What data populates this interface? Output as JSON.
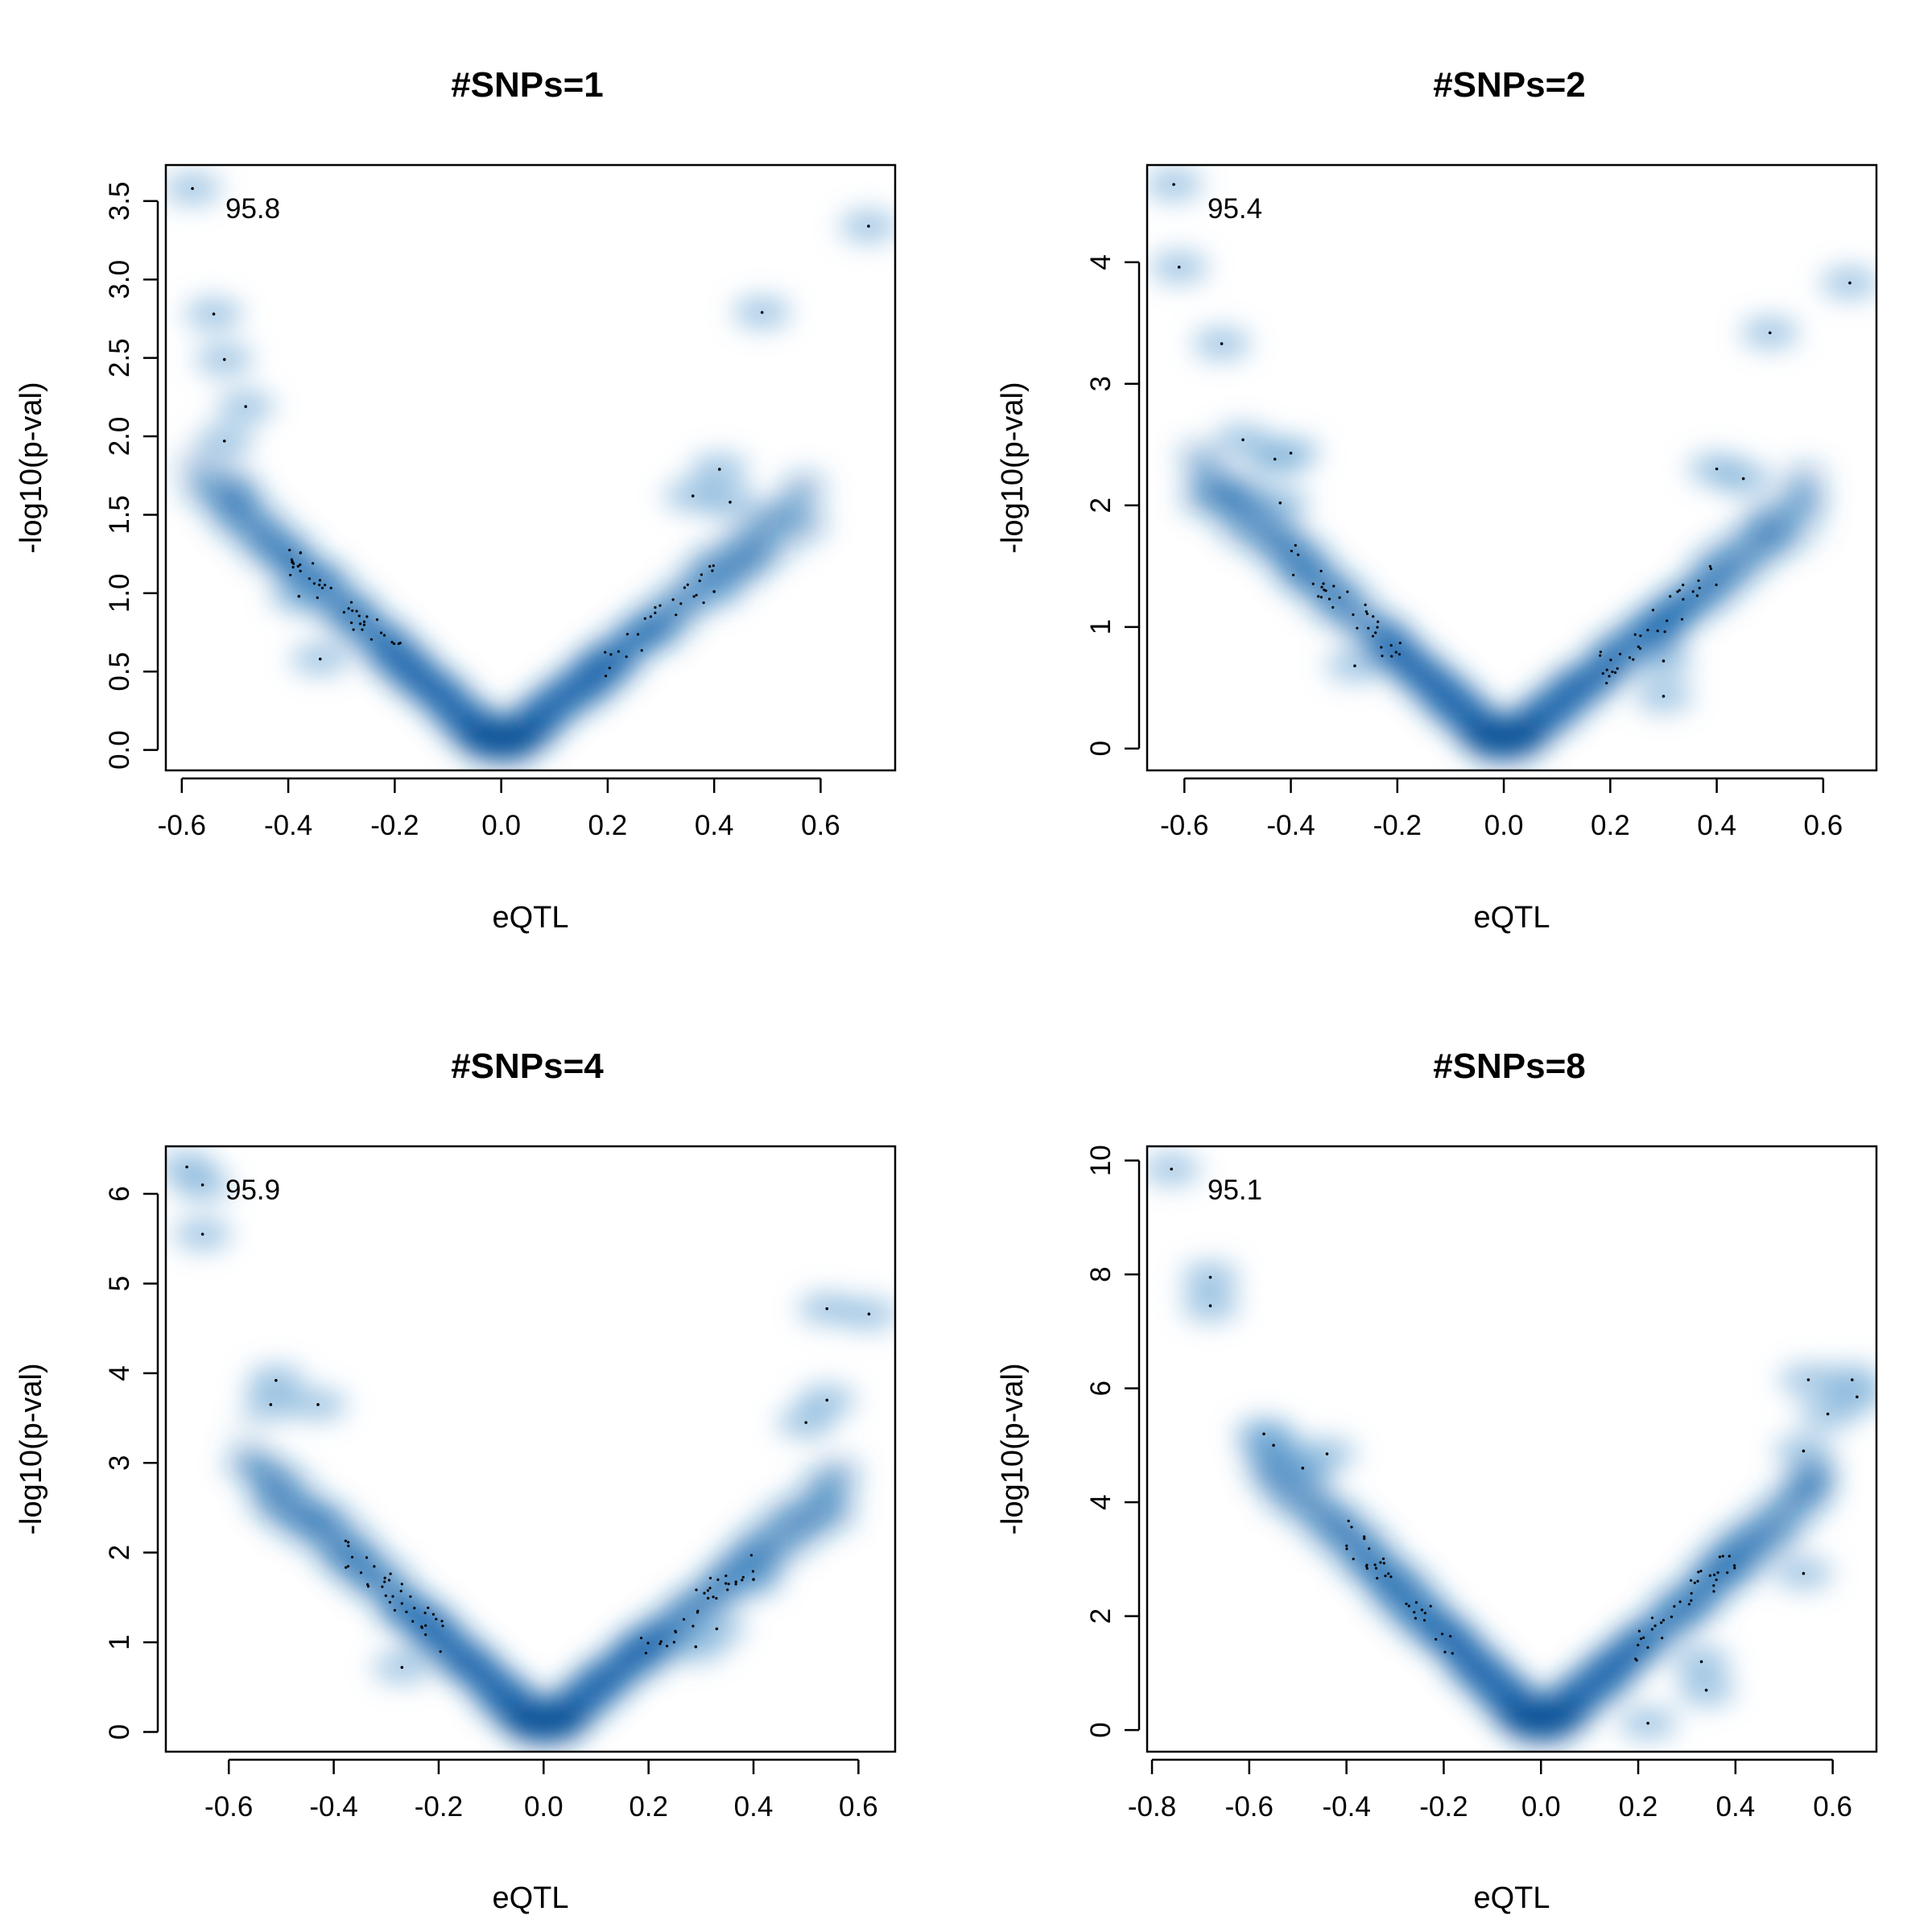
{
  "chart_data": [
    {
      "type": "scatter",
      "title": "#SNPs=1",
      "xlabel": "eQTL",
      "ylabel": "-log10(p-val)",
      "annotation": "95.8",
      "xlim": [
        -0.63,
        0.74
      ],
      "ylim": [
        -0.13,
        3.73
      ],
      "xticks": [
        -0.6,
        -0.4,
        -0.2,
        0.0,
        0.2,
        0.4,
        0.6
      ],
      "xtick_labels": [
        "-0.6",
        "-0.4",
        "-0.2",
        "0.0",
        "0.2",
        "0.4",
        "0.6"
      ],
      "yticks": [
        0.0,
        0.5,
        1.0,
        1.5,
        2.0,
        2.5,
        3.0,
        3.5
      ],
      "ytick_labels": [
        "0.0",
        "0.5",
        "1.0",
        "1.5",
        "2.0",
        "2.5",
        "3.0",
        "3.5"
      ],
      "grid": false,
      "outliers": [
        [
          -0.58,
          3.58
        ],
        [
          -0.54,
          2.78
        ],
        [
          -0.52,
          2.49
        ],
        [
          -0.48,
          2.19
        ],
        [
          -0.52,
          1.97
        ],
        [
          0.49,
          2.79
        ],
        [
          0.69,
          3.34
        ],
        [
          0.41,
          1.79
        ],
        [
          0.43,
          1.58
        ],
        [
          0.36,
          1.62
        ],
        [
          0.4,
          1.01
        ],
        [
          -0.38,
          0.98
        ],
        [
          -0.34,
          0.58
        ]
      ]
    },
    {
      "type": "scatter",
      "title": "#SNPs=2",
      "xlabel": "eQTL",
      "ylabel": "-log10(p-val)",
      "annotation": "95.4",
      "xlim": [
        -0.67,
        0.7
      ],
      "ylim": [
        -0.18,
        4.8
      ],
      "xticks": [
        -0.6,
        -0.4,
        -0.2,
        0.0,
        0.2,
        0.4,
        0.6
      ],
      "xtick_labels": [
        "-0.6",
        "-0.4",
        "-0.2",
        "0.0",
        "0.2",
        "0.4",
        "0.6"
      ],
      "yticks": [
        0,
        1,
        2,
        3,
        4
      ],
      "ytick_labels": [
        "0",
        "1",
        "2",
        "3",
        "4"
      ],
      "grid": false,
      "outliers": [
        [
          -0.62,
          4.64
        ],
        [
          -0.61,
          3.96
        ],
        [
          -0.53,
          3.33
        ],
        [
          -0.49,
          2.54
        ],
        [
          -0.43,
          2.38
        ],
        [
          -0.42,
          2.02
        ],
        [
          -0.4,
          2.43
        ],
        [
          0.5,
          3.42
        ],
        [
          0.65,
          3.83
        ],
        [
          0.45,
          2.22
        ],
        [
          0.4,
          2.3
        ],
        [
          0.3,
          0.72
        ],
        [
          0.3,
          0.43
        ],
        [
          -0.28,
          0.68
        ]
      ]
    },
    {
      "type": "scatter",
      "title": "#SNPs=4",
      "xlabel": "eQTL",
      "ylabel": "-log10(p-val)",
      "annotation": "95.9",
      "xlim": [
        -0.72,
        0.67
      ],
      "ylim": [
        -0.22,
        6.53
      ],
      "xticks": [
        -0.6,
        -0.4,
        -0.2,
        0.0,
        0.2,
        0.4,
        0.6
      ],
      "xtick_labels": [
        "-0.6",
        "-0.4",
        "-0.2",
        "0.0",
        "0.2",
        "0.4",
        "0.6"
      ],
      "yticks": [
        0,
        1,
        2,
        3,
        4,
        5,
        6
      ],
      "ytick_labels": [
        "0",
        "1",
        "2",
        "3",
        "4",
        "5",
        "6"
      ],
      "grid": false,
      "outliers": [
        [
          -0.68,
          6.3
        ],
        [
          -0.65,
          6.1
        ],
        [
          -0.65,
          5.55
        ],
        [
          -0.51,
          3.92
        ],
        [
          -0.52,
          3.65
        ],
        [
          -0.43,
          3.65
        ],
        [
          0.54,
          4.72
        ],
        [
          0.62,
          4.66
        ],
        [
          0.54,
          3.7
        ],
        [
          0.5,
          3.45
        ],
        [
          0.4,
          1.7
        ],
        [
          0.33,
          1.15
        ],
        [
          0.29,
          0.95
        ],
        [
          -0.27,
          0.72
        ]
      ]
    },
    {
      "type": "scatter",
      "title": "#SNPs=8",
      "xlabel": "eQTL",
      "ylabel": "-log10(p-val)",
      "annotation": "95.1",
      "xlim": [
        -0.81,
        0.69
      ],
      "ylim": [
        -0.38,
        10.25
      ],
      "xticks": [
        -0.8,
        -0.6,
        -0.4,
        -0.2,
        0.0,
        0.2,
        0.4,
        0.6
      ],
      "xtick_labels": [
        "-0.8",
        "-0.6",
        "-0.4",
        "-0.2",
        "0.0",
        "0.2",
        "0.4",
        "0.6"
      ],
      "yticks": [
        0,
        2,
        4,
        6,
        8,
        10
      ],
      "ytick_labels": [
        "0",
        "2",
        "4",
        "6",
        "8",
        "10"
      ],
      "grid": false,
      "outliers": [
        [
          -0.76,
          9.85
        ],
        [
          -0.68,
          7.95
        ],
        [
          -0.68,
          7.45
        ],
        [
          -0.57,
          5.2
        ],
        [
          -0.55,
          5.0
        ],
        [
          -0.49,
          4.6
        ],
        [
          -0.44,
          4.85
        ],
        [
          0.55,
          6.15
        ],
        [
          0.64,
          6.15
        ],
        [
          0.65,
          5.85
        ],
        [
          0.59,
          5.55
        ],
        [
          0.54,
          4.9
        ],
        [
          0.54,
          2.75
        ],
        [
          0.33,
          1.2
        ],
        [
          0.34,
          0.7
        ],
        [
          0.22,
          0.12
        ]
      ]
    }
  ]
}
